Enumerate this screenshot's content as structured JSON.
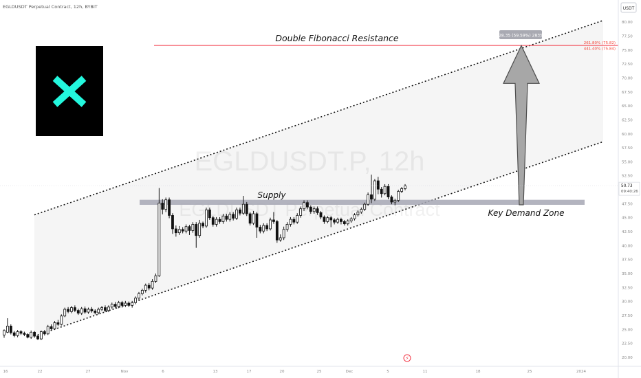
{
  "header": {
    "symbol_line": "EGLDUSDT Perpetual Contract, 12h, BYBIT",
    "currency_button": "USDT"
  },
  "watermark": {
    "ticker": "EGLDUSDT.P, 12h",
    "name": "EGLDUSDT Perpetual Contract"
  },
  "logo": {
    "name": "MultiversX logo",
    "bg": "#000000",
    "mark_color": "#23f7dd"
  },
  "annotations": {
    "resistance_label": "Double Fibonacci Resistance",
    "supply_label": "Supply",
    "demand_label": "Key Demand Zone",
    "measure_label": "28.35 (59.59%) 2835"
  },
  "chart_data": {
    "type": "candlestick",
    "title": "EGLDUSDT Perpetual Contract, 12h, BYBIT",
    "y_axis": {
      "ticks": [
        "80.00",
        "77.50",
        "75.00",
        "72.50",
        "70.00",
        "67.50",
        "65.00",
        "62.50",
        "60.00",
        "57.50",
        "55.00",
        "52.50",
        "50.00",
        "47.50",
        "45.00",
        "42.50",
        "40.00",
        "37.50",
        "35.00",
        "32.50",
        "30.00",
        "27.50",
        "25.00",
        "22.50",
        "20.00"
      ],
      "range": [
        19.5,
        81.5
      ],
      "last_price": "50.73",
      "countdown": "09:40:26"
    },
    "x_axis": {
      "ticks": [
        "16",
        "22",
        "27",
        "Nov",
        "6",
        "13",
        "17",
        "20",
        "25",
        "Dec",
        "5",
        "11",
        "18",
        "25",
        "2024"
      ]
    },
    "fib_levels": [
      {
        "label": "261.80% (75.82)",
        "value": 75.82,
        "color": "#f44336"
      },
      {
        "label": "441.40% (75.84)",
        "value": 75.84,
        "color": "#f44336"
      }
    ],
    "zones": {
      "supply": {
        "from": 47.3,
        "to": 48.2
      },
      "key_demand": {
        "from": 47.3,
        "to": 48.2
      }
    },
    "channel": {
      "upper_start": 45.5,
      "upper_end": 80.3,
      "lower_start": 23.8,
      "lower_end": 58.6
    },
    "projection_target": 75.8,
    "candles": [
      [
        24,
        24.8,
        23.5,
        25.0
      ],
      [
        24.5,
        25.6,
        24.3,
        27.0
      ],
      [
        25.6,
        24.4,
        24.1,
        25.9
      ],
      [
        24.4,
        23.9,
        23.6,
        24.7
      ],
      [
        23.9,
        24.6,
        23.6,
        24.9
      ],
      [
        24.6,
        24.3,
        24.0,
        24.9
      ],
      [
        24.3,
        24.1,
        23.8,
        24.6
      ],
      [
        24.1,
        23.6,
        23.4,
        24.3
      ],
      [
        23.6,
        24.5,
        23.3,
        24.8
      ],
      [
        24.5,
        23.8,
        23.5,
        24.7
      ],
      [
        23.8,
        23.3,
        23.1,
        24.0
      ],
      [
        23.3,
        24.6,
        23.1,
        24.8
      ],
      [
        24.6,
        24.2,
        23.9,
        24.9
      ],
      [
        24.2,
        25.5,
        24.0,
        25.8
      ],
      [
        25.5,
        25.1,
        24.8,
        25.9
      ],
      [
        25.1,
        26.2,
        24.9,
        26.5
      ],
      [
        26.2,
        25.9,
        25.6,
        26.7
      ],
      [
        25.9,
        27.4,
        25.7,
        27.7
      ],
      [
        27.4,
        28.6,
        27.2,
        28.9
      ],
      [
        28.6,
        28.2,
        27.9,
        29.0
      ],
      [
        28.2,
        28.9,
        27.9,
        29.2
      ],
      [
        28.9,
        28.4,
        28.1,
        29.3
      ],
      [
        28.4,
        27.9,
        27.6,
        28.7
      ],
      [
        27.9,
        28.7,
        27.6,
        29.0
      ],
      [
        28.7,
        28.1,
        27.8,
        29.1
      ],
      [
        28.1,
        28.6,
        27.8,
        28.9
      ],
      [
        28.6,
        28.3,
        28.0,
        29.0
      ],
      [
        28.3,
        28.0,
        27.7,
        28.6
      ],
      [
        28.0,
        28.6,
        27.7,
        28.9
      ],
      [
        28.6,
        28.9,
        28.3,
        29.2
      ],
      [
        28.9,
        28.4,
        28.1,
        29.3
      ],
      [
        28.4,
        29.0,
        28.1,
        29.3
      ],
      [
        29.0,
        29.5,
        28.7,
        29.8
      ],
      [
        29.5,
        29.1,
        28.8,
        29.9
      ],
      [
        29.1,
        29.8,
        28.8,
        30.1
      ],
      [
        29.8,
        29.3,
        28.9,
        30.1
      ],
      [
        29.3,
        29.7,
        29.0,
        30.1
      ],
      [
        29.7,
        29.3,
        29.0,
        30.0
      ],
      [
        29.3,
        29.8,
        28.9,
        30.1
      ],
      [
        29.8,
        30.6,
        29.5,
        30.9
      ],
      [
        30.6,
        31.4,
        30.2,
        31.7
      ],
      [
        31.4,
        32.0,
        31.1,
        32.3
      ],
      [
        32.0,
        32.9,
        31.6,
        33.2
      ],
      [
        32.9,
        32.4,
        32.0,
        33.3
      ],
      [
        32.4,
        33.6,
        32.1,
        34.0
      ],
      [
        33.6,
        34.6,
        33.3,
        35.0
      ],
      [
        34.6,
        47.6,
        34.4,
        50.3
      ],
      [
        47.6,
        46.5,
        45.6,
        48.3
      ],
      [
        46.5,
        48.2,
        46.0,
        48.6
      ],
      [
        48.2,
        45.4,
        44.9,
        48.6
      ],
      [
        45.4,
        43.0,
        42.1,
        45.8
      ],
      [
        43.0,
        42.3,
        41.6,
        43.6
      ],
      [
        42.3,
        42.9,
        41.9,
        43.5
      ],
      [
        42.9,
        42.6,
        42.2,
        43.3
      ],
      [
        42.6,
        43.4,
        42.2,
        43.8
      ],
      [
        43.4,
        42.7,
        41.9,
        43.7
      ],
      [
        42.7,
        43.8,
        42.3,
        44.2
      ],
      [
        43.8,
        41.8,
        39.6,
        44.2
      ],
      [
        41.8,
        44.0,
        41.4,
        44.6
      ],
      [
        44.0,
        43.5,
        43.1,
        44.3
      ],
      [
        43.5,
        46.4,
        43.2,
        46.8
      ],
      [
        46.4,
        45.0,
        44.6,
        46.8
      ],
      [
        45.0,
        43.8,
        43.4,
        45.3
      ],
      [
        43.8,
        44.7,
        43.4,
        45.1
      ],
      [
        44.7,
        44.3,
        43.9,
        45.1
      ],
      [
        44.3,
        45.3,
        43.9,
        45.7
      ],
      [
        45.3,
        44.7,
        44.3,
        45.7
      ],
      [
        44.7,
        45.6,
        44.3,
        46.0
      ],
      [
        45.6,
        44.9,
        44.5,
        46.0
      ],
      [
        44.9,
        46.4,
        44.6,
        46.8
      ],
      [
        46.4,
        45.8,
        45.4,
        46.8
      ],
      [
        45.8,
        47.4,
        45.5,
        48.9
      ],
      [
        47.4,
        45.7,
        45.3,
        47.8
      ],
      [
        45.7,
        44.0,
        43.6,
        46.0
      ],
      [
        44.0,
        45.7,
        43.7,
        46.2
      ],
      [
        45.7,
        43.3,
        41.4,
        46.0
      ],
      [
        43.3,
        42.6,
        42.2,
        43.7
      ],
      [
        42.6,
        43.6,
        42.2,
        44.0
      ],
      [
        43.6,
        43.0,
        42.6,
        44.0
      ],
      [
        43.0,
        44.6,
        42.7,
        45.0
      ],
      [
        44.6,
        44.3,
        43.9,
        46.0
      ],
      [
        44.3,
        41.0,
        40.5,
        44.6
      ],
      [
        41.0,
        41.4,
        40.7,
        42.0
      ],
      [
        41.4,
        42.9,
        41.0,
        43.4
      ],
      [
        42.9,
        43.8,
        42.5,
        44.2
      ],
      [
        43.8,
        44.7,
        43.4,
        45.1
      ],
      [
        44.7,
        44.2,
        43.8,
        45.1
      ],
      [
        44.2,
        45.4,
        43.9,
        45.8
      ],
      [
        45.4,
        46.6,
        45.0,
        47.0
      ],
      [
        46.6,
        47.7,
        46.2,
        48.1
      ],
      [
        47.7,
        46.9,
        46.5,
        48.1
      ],
      [
        46.9,
        46.1,
        45.7,
        47.2
      ],
      [
        46.1,
        46.6,
        45.7,
        47.0
      ],
      [
        46.6,
        45.9,
        45.5,
        47.0
      ],
      [
        45.9,
        45.1,
        44.7,
        46.2
      ],
      [
        45.1,
        44.3,
        43.9,
        45.4
      ],
      [
        44.3,
        45.0,
        44.0,
        45.3
      ],
      [
        45.0,
        44.6,
        43.3,
        45.3
      ],
      [
        44.6,
        44.2,
        43.8,
        44.9
      ],
      [
        44.2,
        44.7,
        43.9,
        45.0
      ],
      [
        44.7,
        44.3,
        43.8,
        45.0
      ],
      [
        44.3,
        43.9,
        43.6,
        44.6
      ],
      [
        43.9,
        44.4,
        43.6,
        44.7
      ],
      [
        44.4,
        44.8,
        44.1,
        45.1
      ],
      [
        44.8,
        45.5,
        44.5,
        45.8
      ],
      [
        45.5,
        46.0,
        45.2,
        46.3
      ],
      [
        46.0,
        46.5,
        45.7,
        46.8
      ],
      [
        46.5,
        47.4,
        46.2,
        47.7
      ],
      [
        47.4,
        49.1,
        47.1,
        49.5
      ],
      [
        49.1,
        48.3,
        47.6,
        52.7
      ],
      [
        48.3,
        51.6,
        48.0,
        51.9
      ],
      [
        51.6,
        50.1,
        49.2,
        52.3
      ],
      [
        50.1,
        49.3,
        48.6,
        50.5
      ],
      [
        49.3,
        50.6,
        49.0,
        51.0
      ],
      [
        50.6,
        48.7,
        48.3,
        51.0
      ],
      [
        48.7,
        47.8,
        47.4,
        49.0
      ],
      [
        47.8,
        48.1,
        47.2,
        48.4
      ],
      [
        48.1,
        49.7,
        47.8,
        50.0
      ],
      [
        49.7,
        50.2,
        49.4,
        50.5
      ],
      [
        50.2,
        50.7,
        49.9,
        51.0
      ]
    ]
  }
}
